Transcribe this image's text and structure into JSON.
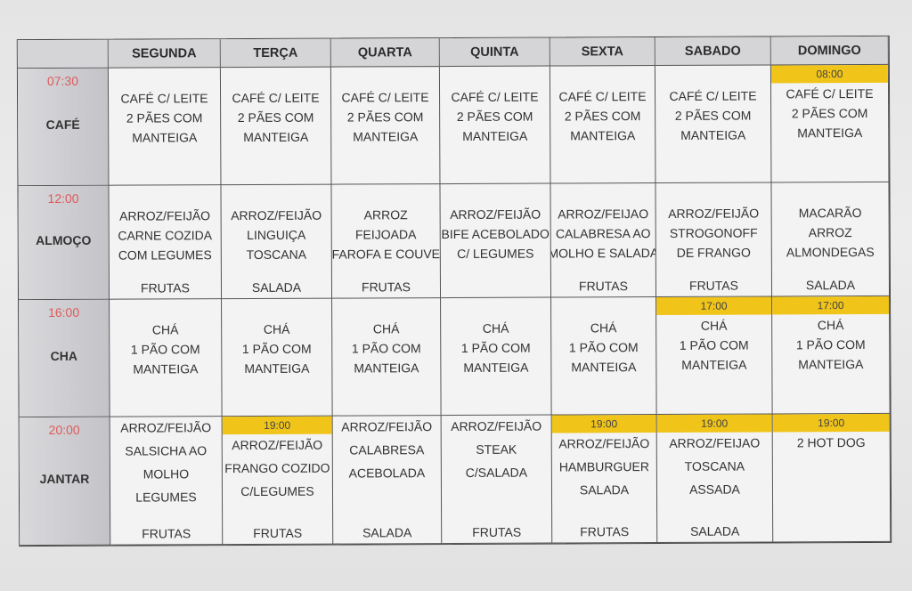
{
  "corner": "",
  "days": [
    "SEGUNDA",
    "TERÇA",
    "QUARTA",
    "QUINTA",
    "SEXTA",
    "SABADO",
    "DOMINGO"
  ],
  "colors": {
    "time_text": "#dd5b5b",
    "highlight": "#f0c419",
    "label_column": "#c9c8cc",
    "header": "#d5d5d8"
  },
  "rows": [
    {
      "time": "07:30",
      "name": "CAFÉ",
      "cells": [
        {
          "lines": [
            "CAFÉ C/ LEITE",
            "2 PÃES COM",
            "MANTEIGA"
          ]
        },
        {
          "lines": [
            "CAFÉ C/ LEITE",
            "2 PÃES COM",
            "MANTEIGA"
          ]
        },
        {
          "lines": [
            "CAFÉ C/ LEITE",
            "2 PÃES COM",
            "MANTEIGA"
          ]
        },
        {
          "lines": [
            "CAFÉ C/ LEITE",
            "2 PÃES COM",
            "MANTEIGA"
          ]
        },
        {
          "lines": [
            "CAFÉ C/ LEITE",
            "2 PÃES COM",
            "MANTEIGA"
          ]
        },
        {
          "lines": [
            "CAFÉ C/ LEITE",
            "2 PÃES COM",
            "MANTEIGA"
          ]
        },
        {
          "time": "08:00",
          "lines": [
            "CAFÉ C/ LEITE",
            "2 PÃES COM",
            "MANTEIGA"
          ]
        }
      ]
    },
    {
      "time": "12:00",
      "name": "ALMOÇO",
      "cells": [
        {
          "lines": [
            "ARROZ/FEIJÃO",
            "CARNE COZIDA",
            "COM LEGUMES"
          ],
          "footer": "FRUTAS"
        },
        {
          "lines": [
            "ARROZ/FEIJÃO",
            "LINGUIÇA",
            "TOSCANA"
          ],
          "footer": "SALADA"
        },
        {
          "lines": [
            "ARROZ",
            "FEIJOADA",
            "FAROFA E COUVE"
          ],
          "footer": "FRUTAS"
        },
        {
          "lines": [
            "ARROZ/FEIJÃO",
            "BIFE ACEBOLADO",
            "C/ LEGUMES"
          ]
        },
        {
          "lines": [
            "ARROZ/FEIJAO",
            "CALABRESA AO",
            "MOLHO E SALADA"
          ],
          "footer": "FRUTAS"
        },
        {
          "lines": [
            "ARROZ/FEIJÃO",
            "STROGONOFF",
            "DE FRANGO"
          ],
          "footer": "FRUTAS"
        },
        {
          "lines": [
            "MACARÃO",
            "ARROZ",
            "ALMONDEGAS"
          ],
          "footer": "SALADA"
        }
      ]
    },
    {
      "time": "16:00",
      "name": "CHA",
      "cells": [
        {
          "lines": [
            "CHÁ",
            "1 PÃO COM",
            "MANTEIGA"
          ]
        },
        {
          "lines": [
            "CHÁ",
            "1 PÃO COM",
            "MANTEIGA"
          ]
        },
        {
          "lines": [
            "CHÁ",
            "1 PÃO COM",
            "MANTEIGA"
          ]
        },
        {
          "lines": [
            "CHÁ",
            "1 PÃO COM",
            "MANTEIGA"
          ]
        },
        {
          "lines": [
            "CHÁ",
            "1 PÃO COM",
            "MANTEIGA"
          ]
        },
        {
          "time": "17:00",
          "lines": [
            "CHÁ",
            "1 PÃO COM",
            "MANTEIGA"
          ]
        },
        {
          "time": "17:00",
          "lines": [
            "CHÁ",
            "1 PÃO COM",
            "MANTEIGA"
          ]
        }
      ]
    },
    {
      "time": "20:00",
      "name": "JANTAR",
      "cells": [
        {
          "lines": [
            "ARROZ/FEIJÃO",
            "SALSICHA AO",
            "MOLHO",
            "LEGUMES"
          ],
          "footer": "FRUTAS"
        },
        {
          "time": "19:00",
          "lines": [
            "ARROZ/FEIJÃO",
            "FRANGO COZIDO",
            "C/LEGUMES"
          ],
          "footer": "FRUTAS"
        },
        {
          "lines": [
            "ARROZ/FEIJÃO",
            "CALABRESA",
            "ACEBOLADA"
          ],
          "footer": "SALADA"
        },
        {
          "lines": [
            "ARROZ/FEIJÃO",
            "STEAK",
            "C/SALADA"
          ],
          "footer": "FRUTAS"
        },
        {
          "time": "19:00",
          "lines": [
            "ARROZ/FEIJÃO",
            "HAMBURGUER",
            "SALADA"
          ],
          "footer": "FRUTAS"
        },
        {
          "time": "19:00",
          "lines": [
            "ARROZ/FEIJAO",
            "TOSCANA",
            "ASSADA"
          ],
          "footer": "SALADA"
        },
        {
          "time": "19:00",
          "lines": [
            "2 HOT DOG"
          ]
        }
      ]
    }
  ]
}
